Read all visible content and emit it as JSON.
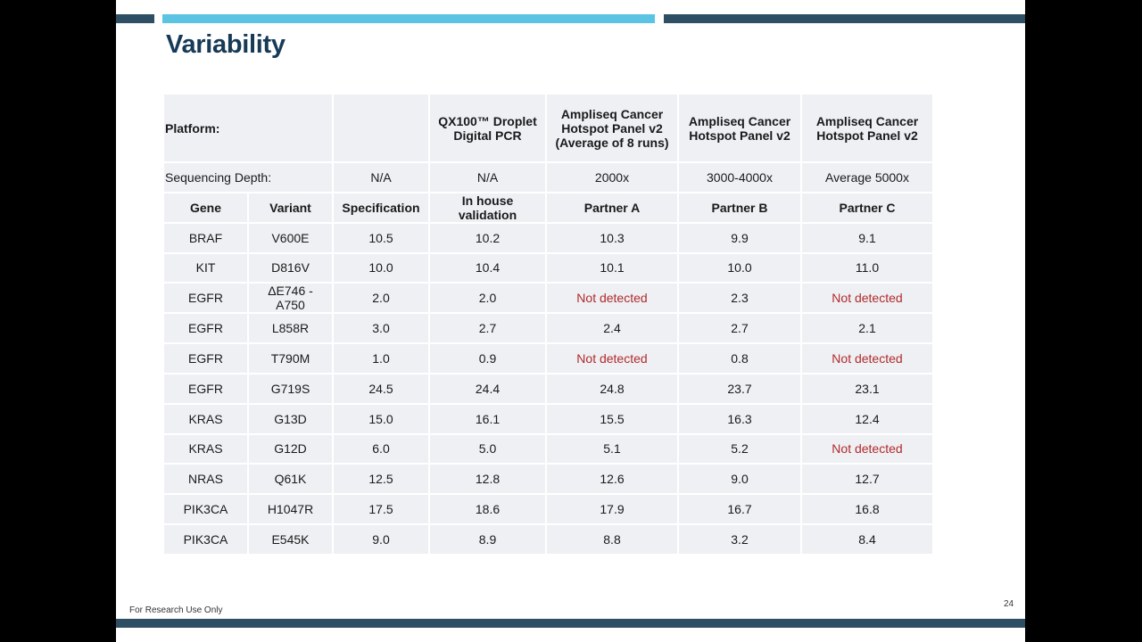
{
  "slide": {
    "title": "Variability",
    "footer": "For Research Use Only",
    "page_number": "24",
    "colors": {
      "title": "#173a57",
      "bar_dark": "#2e4f63",
      "bar_accent": "#5bc4e3",
      "not_detected": "#b22a2a",
      "cell_bg": "#eef0f4"
    }
  },
  "table": {
    "platform_label": "Platform:",
    "platforms": [
      "QX100™ Droplet Digital PCR",
      "Ampliseq Cancer Hotspot Panel v2 (Average of 8 runs)",
      "Ampliseq Cancer Hotspot Panel v2",
      "Ampliseq Cancer Hotspot Panel v2"
    ],
    "depth_label": "Sequencing Depth:",
    "depths": [
      "N/A",
      "N/A",
      "2000x",
      "3000-4000x",
      "Average 5000x"
    ],
    "headers": [
      "Gene",
      "Variant",
      "Specification",
      "In house validation",
      "Partner A",
      "Partner B",
      "Partner C"
    ],
    "rows": [
      [
        "BRAF",
        "V600E",
        "10.5",
        "10.2",
        "10.3",
        "9.9",
        "9.1"
      ],
      [
        "KIT",
        "D816V",
        "10.0",
        "10.4",
        "10.1",
        "10.0",
        "11.0"
      ],
      [
        "EGFR",
        "ΔE746 - A750",
        "2.0",
        "2.0",
        "Not detected",
        "2.3",
        "Not detected"
      ],
      [
        "EGFR",
        "L858R",
        "3.0",
        "2.7",
        "2.4",
        "2.7",
        "2.1"
      ],
      [
        "EGFR",
        "T790M",
        "1.0",
        "0.9",
        "Not detected",
        "0.8",
        "Not detected"
      ],
      [
        "EGFR",
        "G719S",
        "24.5",
        "24.4",
        "24.8",
        "23.7",
        "23.1"
      ],
      [
        "KRAS",
        "G13D",
        "15.0",
        "16.1",
        "15.5",
        "16.3",
        "12.4"
      ],
      [
        "KRAS",
        "G12D",
        "6.0",
        "5.0",
        "5.1",
        "5.2",
        "Not detected"
      ],
      [
        "NRAS",
        "Q61K",
        "12.5",
        "12.8",
        "12.6",
        "9.0",
        "12.7"
      ],
      [
        "PIK3CA",
        "H1047R",
        "17.5",
        "18.6",
        "17.9",
        "16.7",
        "16.8"
      ],
      [
        "PIK3CA",
        "E545K",
        "9.0",
        "8.9",
        "8.8",
        "3.2",
        "8.4"
      ]
    ]
  }
}
